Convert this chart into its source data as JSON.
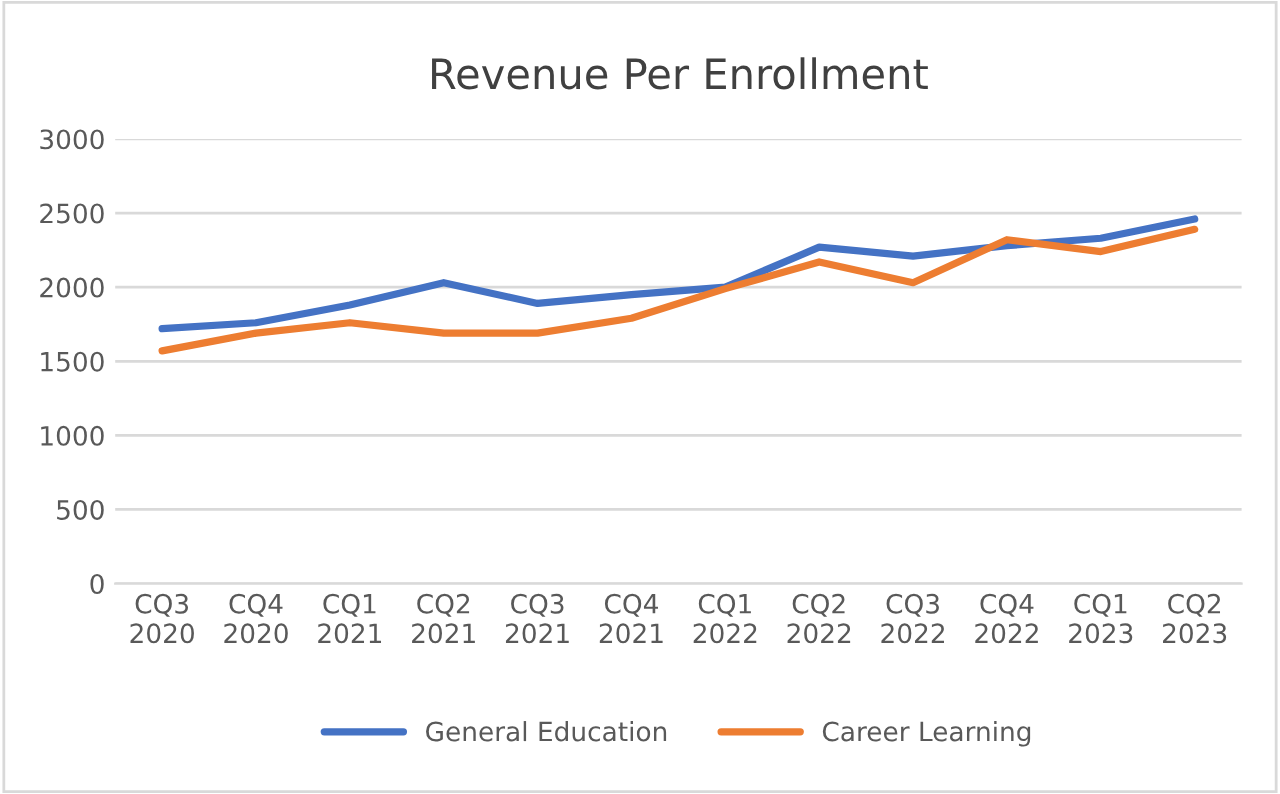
{
  "chart_data": {
    "type": "line",
    "title": "Revenue Per Enrollment",
    "categories": [
      "CQ3\n2020",
      "CQ4\n2020",
      "CQ1\n2021",
      "CQ2\n2021",
      "CQ3\n2021",
      "CQ4\n2021",
      "CQ1\n2022",
      "CQ2\n2022",
      "CQ3\n2022",
      "CQ4\n2022",
      "CQ1\n2023",
      "CQ2\n2023"
    ],
    "series": [
      {
        "name": "General Education",
        "color": "#4472c4",
        "values": [
          1720,
          1760,
          1880,
          2030,
          1890,
          1950,
          2000,
          2270,
          2210,
          2280,
          2330,
          2460
        ]
      },
      {
        "name": "Career Learning",
        "color": "#ed7d31",
        "values": [
          1570,
          1690,
          1760,
          1690,
          1690,
          1790,
          1990,
          2170,
          2030,
          2320,
          2240,
          2390
        ]
      }
    ],
    "ylim": [
      0,
      3000
    ],
    "yticks": [
      0,
      500,
      1000,
      1500,
      2000,
      2500,
      3000
    ],
    "grid": "y",
    "legend": "bottom",
    "marker": "none",
    "line_style": "solid"
  }
}
